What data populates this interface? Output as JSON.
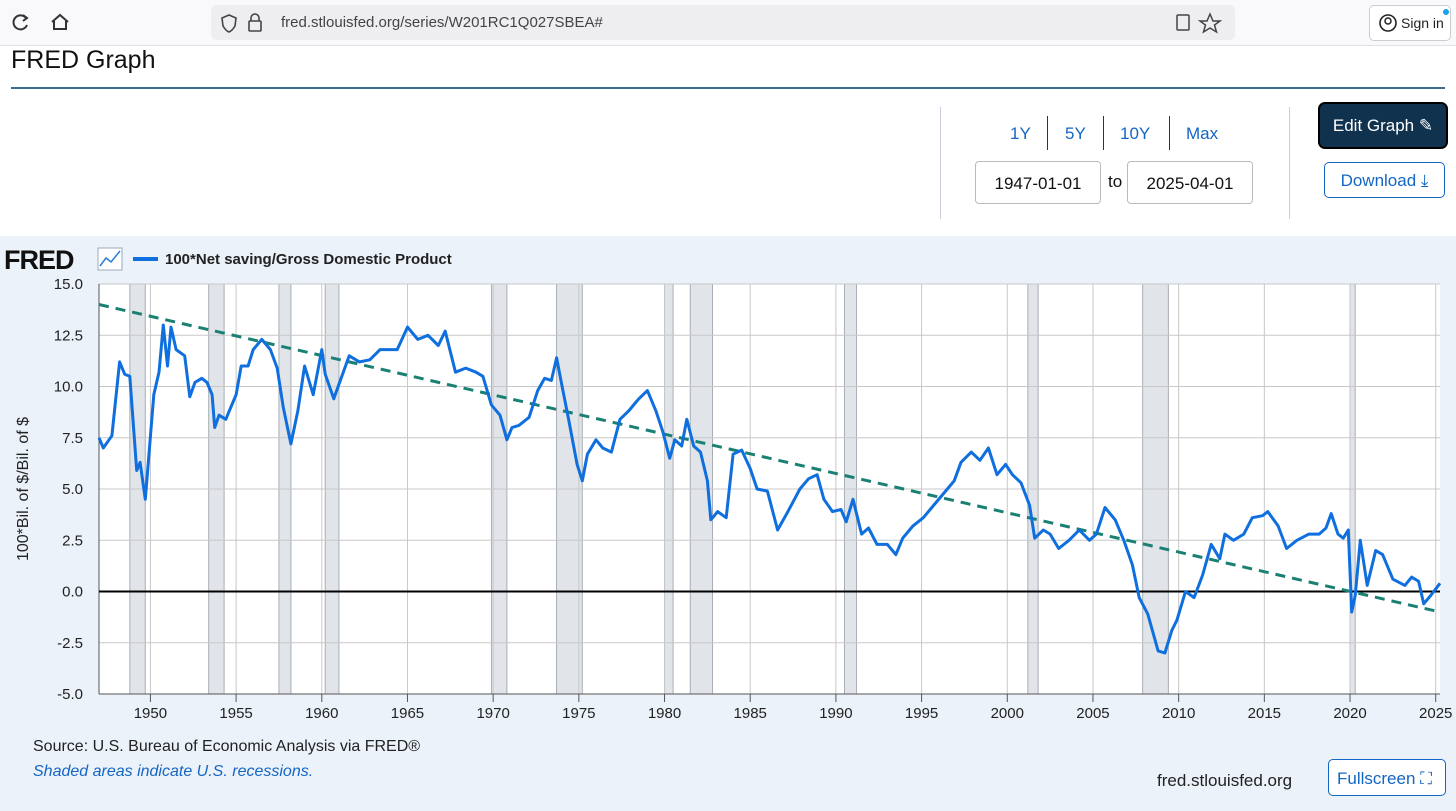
{
  "browser": {
    "url": "fred.stlouisfed.org/series/W201RC1Q027SBEA#",
    "sign_in": "Sign in"
  },
  "header": {
    "title": "FRED Graph"
  },
  "controls": {
    "ranges": [
      "1Y",
      "5Y",
      "10Y",
      "Max"
    ],
    "start": "1947-01-01",
    "to": "to",
    "end": "2025-04-01",
    "edit": "Edit Graph",
    "download": "Download"
  },
  "chart_data": {
    "type": "line",
    "logo": "FRED",
    "ylabel": "100*Bil. of $/Bil. of $",
    "xlim": [
      1947,
      2025.25
    ],
    "ylim": [
      -5,
      15
    ],
    "xticks": [
      1950,
      1955,
      1960,
      1965,
      1970,
      1975,
      1980,
      1985,
      1990,
      1995,
      2000,
      2005,
      2010,
      2015,
      2020,
      2025
    ],
    "yticks": [
      {
        "value": 15,
        "label": "15.0"
      },
      12.5,
      {
        "value": 10,
        "label": "10.0"
      },
      7.5,
      {
        "value": 5,
        "label": "5.0"
      },
      2.5,
      {
        "value": 0,
        "label": "0.0"
      },
      -2.5,
      {
        "value": -5,
        "label": "-5.0"
      }
    ],
    "grid": true,
    "recessions": [
      [
        1948.8,
        1949.7
      ],
      [
        1953.4,
        1954.3
      ],
      [
        1957.5,
        1958.2
      ],
      [
        1960.2,
        1961.0
      ],
      [
        1969.9,
        1970.8
      ],
      [
        1973.7,
        1975.2
      ],
      [
        1980.0,
        1980.5
      ],
      [
        1981.5,
        1982.8
      ],
      [
        1990.5,
        1991.2
      ],
      [
        2001.2,
        2001.8
      ],
      [
        2007.9,
        2009.4
      ],
      [
        2020.0,
        2020.3
      ]
    ],
    "trend": {
      "x": [
        1947,
        2025.25
      ],
      "values": [
        14.0,
        -1.0
      ],
      "color": "#1a8073"
    },
    "series": [
      {
        "name": "100*Net saving/Gross Domestic Product",
        "color": "#0f6fde",
        "x": [
          1947.0,
          1947.25,
          1947.75,
          1948.2,
          1948.5,
          1948.8,
          1949.2,
          1949.4,
          1949.7,
          1950.2,
          1950.5,
          1950.75,
          1951.0,
          1951.2,
          1951.5,
          1952.0,
          1952.3,
          1952.6,
          1953.0,
          1953.3,
          1953.6,
          1953.75,
          1954.0,
          1954.4,
          1955.0,
          1955.3,
          1955.7,
          1956.0,
          1956.5,
          1957.0,
          1957.4,
          1957.75,
          1958.2,
          1958.6,
          1959.0,
          1959.5,
          1960.0,
          1960.2,
          1960.7,
          1961.0,
          1961.6,
          1962.2,
          1962.8,
          1963.4,
          1964.0,
          1964.4,
          1965.0,
          1965.6,
          1966.2,
          1966.8,
          1967.2,
          1967.8,
          1968.4,
          1969.0,
          1969.4,
          1969.9,
          1970.4,
          1970.8,
          1971.1,
          1971.5,
          1972.1,
          1972.6,
          1973.0,
          1973.4,
          1973.7,
          1974.0,
          1974.4,
          1974.9,
          1975.2,
          1975.5,
          1976.0,
          1976.4,
          1976.9,
          1977.4,
          1977.9,
          1978.5,
          1979.0,
          1979.5,
          1979.9,
          1980.3,
          1980.6,
          1981.0,
          1981.3,
          1981.7,
          1982.1,
          1982.5,
          1982.7,
          1983.1,
          1983.6,
          1984.0,
          1984.5,
          1985.0,
          1985.4,
          1986.0,
          1986.6,
          1987.2,
          1987.9,
          1988.4,
          1988.9,
          1989.3,
          1989.8,
          1990.3,
          1990.6,
          1991.0,
          1991.5,
          1991.9,
          1992.4,
          1993.0,
          1993.5,
          1993.9,
          1994.5,
          1995.1,
          1995.7,
          1996.3,
          1996.9,
          1997.3,
          1997.9,
          1998.4,
          1998.9,
          1999.4,
          1999.9,
          2000.3,
          2000.8,
          2001.3,
          2001.6,
          2002.1,
          2002.5,
          2003.0,
          2003.6,
          2004.2,
          2004.8,
          2005.2,
          2005.7,
          2006.3,
          2006.8,
          2007.3,
          2007.7,
          2008.2,
          2008.8,
          2009.2,
          2009.6,
          2009.9,
          2010.4,
          2010.9,
          2011.4,
          2011.9,
          2012.4,
          2012.7,
          2013.2,
          2013.8,
          2014.3,
          2014.9,
          2015.2,
          2015.8,
          2016.3,
          2016.9,
          2017.6,
          2018.2,
          2018.6,
          2018.9,
          2019.3,
          2019.6,
          2019.9,
          2020.1,
          2020.3,
          2020.6,
          2021.0,
          2021.5,
          2021.9,
          2022.5,
          2023.2,
          2023.6,
          2024.0,
          2024.3,
          2024.7,
          2025.25
        ],
        "values": [
          7.5,
          7.0,
          7.6,
          11.2,
          10.6,
          10.5,
          5.9,
          6.3,
          4.5,
          9.6,
          10.7,
          13.0,
          11.0,
          12.9,
          11.8,
          11.5,
          9.5,
          10.2,
          10.4,
          10.2,
          9.6,
          8.0,
          8.6,
          8.4,
          9.6,
          11.0,
          11.0,
          11.8,
          12.3,
          11.8,
          10.9,
          9.0,
          7.2,
          8.8,
          11.0,
          9.6,
          11.8,
          10.6,
          9.4,
          10.1,
          11.5,
          11.2,
          11.3,
          11.8,
          11.8,
          11.8,
          12.9,
          12.3,
          12.5,
          12.0,
          12.7,
          10.7,
          10.9,
          10.7,
          10.5,
          9.1,
          8.6,
          7.4,
          8.0,
          8.1,
          8.5,
          9.8,
          10.4,
          10.3,
          11.4,
          10.1,
          8.4,
          6.2,
          5.4,
          6.7,
          7.4,
          7.0,
          6.8,
          8.4,
          8.8,
          9.4,
          9.8,
          8.8,
          7.8,
          6.5,
          7.4,
          7.1,
          8.4,
          7.1,
          6.8,
          5.4,
          3.5,
          3.9,
          3.6,
          6.7,
          6.9,
          6.0,
          5.0,
          4.9,
          3.0,
          3.9,
          5.0,
          5.5,
          5.7,
          4.5,
          3.9,
          4.0,
          3.4,
          4.5,
          2.8,
          3.1,
          2.3,
          2.3,
          1.8,
          2.6,
          3.2,
          3.6,
          4.2,
          4.8,
          5.4,
          6.3,
          6.8,
          6.4,
          7.0,
          5.7,
          6.2,
          5.7,
          5.3,
          4.2,
          2.6,
          3.0,
          2.8,
          2.1,
          2.5,
          3.0,
          2.5,
          2.8,
          4.1,
          3.5,
          2.5,
          1.3,
          -0.3,
          -1.1,
          -2.9,
          -3.0,
          -1.9,
          -1.4,
          0.0,
          -0.3,
          0.8,
          2.3,
          1.6,
          2.8,
          2.5,
          2.8,
          3.6,
          3.7,
          3.9,
          3.2,
          2.1,
          2.5,
          2.8,
          2.8,
          3.1,
          3.8,
          2.8,
          2.6,
          3.0,
          -1.0,
          -0.2,
          2.5,
          0.3,
          2.0,
          1.8,
          0.6,
          0.3,
          0.7,
          0.5,
          -0.6,
          -0.2,
          0.4
        ]
      }
    ]
  },
  "footer": {
    "source": "Source: U.S. Bureau of Economic Analysis via FRED®",
    "note": "Shaded areas indicate U.S. recessions.",
    "site": "fred.stlouisfed.org",
    "fullscreen": "Fullscreen"
  }
}
